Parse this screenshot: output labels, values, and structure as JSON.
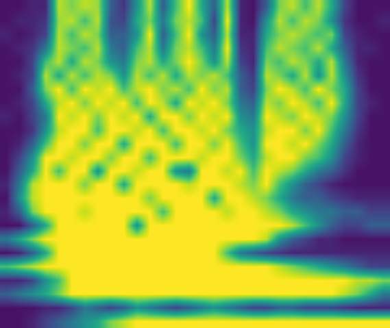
{
  "chart_data": {
    "type": "heatmap",
    "tick_labels": false,
    "zlim": [
      0,
      1
    ],
    "cells": [
      [
        0.05,
        0.05,
        0.1,
        0.1,
        0.9,
        0.8,
        0.9,
        0.85,
        0.3,
        0.15,
        0.5,
        0.9,
        0.3,
        0.7,
        1,
        0.6,
        0.3,
        0.9,
        0.1,
        0.05,
        0.3,
        0.8,
        0.9,
        0.7,
        0.9,
        0.6,
        0.2,
        0.05,
        0.05,
        0.05
      ],
      [
        0.05,
        0.1,
        0.1,
        0.15,
        0.85,
        0.9,
        0.7,
        0.9,
        0.25,
        0.2,
        0.6,
        0.8,
        0.4,
        0.8,
        0.9,
        0.7,
        0.2,
        1,
        0.1,
        0.05,
        0.5,
        0.9,
        0.7,
        0.9,
        0.8,
        0.5,
        0.15,
        0.05,
        0.05,
        0.1
      ],
      [
        0.1,
        0.05,
        0.1,
        0.2,
        0.9,
        0.7,
        0.9,
        0.8,
        0.3,
        0.3,
        0.5,
        1,
        0.3,
        0.7,
        1,
        0.5,
        0.3,
        0.9,
        0.1,
        0.1,
        0.6,
        0.8,
        0.9,
        0.8,
        0.7,
        0.8,
        0.2,
        0.1,
        0.05,
        0.05
      ],
      [
        0.05,
        0.1,
        0.15,
        0.4,
        0.9,
        0.8,
        0.7,
        0.9,
        0.4,
        0.3,
        0.7,
        0.9,
        0.4,
        0.8,
        0.9,
        0.7,
        0.4,
        1,
        0.15,
        0.1,
        0.7,
        0.9,
        0.8,
        0.7,
        0.9,
        0.6,
        0.3,
        0.1,
        0.1,
        0.05
      ],
      [
        0.05,
        0.05,
        0.2,
        0.7,
        0.9,
        0.6,
        0.9,
        0.8,
        0.5,
        0.4,
        0.8,
        0.9,
        0.6,
        0.8,
        1,
        0.8,
        0.5,
        0.9,
        0.2,
        0.1,
        0.8,
        0.7,
        0.9,
        0.8,
        0.6,
        0.9,
        0.4,
        0.1,
        0.05,
        0.05
      ],
      [
        0.05,
        0.1,
        0.2,
        0.9,
        0.6,
        0.9,
        0.7,
        0.9,
        0.8,
        0.5,
        0.9,
        0.7,
        0.9,
        0.6,
        0.9,
        0.8,
        0.9,
        0.7,
        0.3,
        0.15,
        0.9,
        0.8,
        0.6,
        0.9,
        0.5,
        0.9,
        0.5,
        0.15,
        0.05,
        0.05
      ],
      [
        0.05,
        0.05,
        0.3,
        0.8,
        1,
        0.7,
        1,
        0.9,
        1,
        0.7,
        0.9,
        1,
        0.8,
        0.9,
        0.7,
        1,
        0.8,
        0.9,
        0.3,
        0.2,
        0.8,
        1,
        0.9,
        0.7,
        1,
        0.8,
        0.6,
        0.2,
        0.05,
        0.05
      ],
      [
        0.05,
        0.1,
        0.2,
        0.6,
        0.9,
        1,
        0.8,
        1,
        0.9,
        1,
        0.7,
        1,
        0.9,
        0.6,
        1,
        0.9,
        1,
        0.8,
        0.4,
        0.3,
        0.9,
        0.8,
        1,
        0.9,
        0.7,
        1,
        0.6,
        0.2,
        0.1,
        0.05
      ],
      [
        0.1,
        0.05,
        0.2,
        0.4,
        1,
        0.9,
        1,
        0.8,
        1,
        0.9,
        1,
        0.6,
        1,
        1,
        0.8,
        1,
        0.9,
        1,
        0.5,
        0.4,
        1,
        0.9,
        0.8,
        1,
        0.9,
        0.8,
        0.5,
        0.2,
        0.05,
        0.05
      ],
      [
        0.05,
        0.05,
        0.15,
        0.5,
        0.9,
        1,
        1,
        0.7,
        1,
        1,
        0.9,
        1,
        0.7,
        1,
        1,
        0.9,
        1,
        0.8,
        0.6,
        0.5,
        0.9,
        1,
        1,
        0.8,
        1,
        0.7,
        0.4,
        0.15,
        0.05,
        0.05
      ],
      [
        0.05,
        0.1,
        0.3,
        0.7,
        1,
        1,
        0.8,
        1,
        1,
        0.6,
        1,
        1,
        1,
        0.7,
        1,
        1,
        0.8,
        1,
        0.7,
        0.5,
        1,
        1,
        0.9,
        1,
        0.8,
        0.6,
        0.3,
        0.1,
        0.05,
        0.05
      ],
      [
        0.05,
        0.2,
        0.5,
        1,
        1,
        0.9,
        1,
        1,
        0.8,
        1,
        1,
        0.7,
        1,
        1,
        1,
        0.9,
        1,
        1,
        0.8,
        0.6,
        0.9,
        1,
        1,
        0.8,
        0.7,
        0.5,
        0.2,
        0.1,
        0.05,
        0.05
      ],
      [
        0.05,
        0.3,
        0.6,
        1,
        0.7,
        1,
        1,
        0.5,
        1,
        1,
        0.9,
        1,
        1,
        0.5,
        0.4,
        1,
        1,
        0.9,
        1,
        0.7,
        1,
        0.9,
        0.8,
        0.6,
        0.4,
        0.3,
        0.15,
        0.05,
        0.05,
        0.05
      ],
      [
        0.1,
        0.4,
        0.9,
        1,
        1,
        1,
        0.8,
        1,
        1,
        0.6,
        1,
        1,
        1,
        1,
        0.9,
        1,
        1,
        1,
        0.9,
        0.8,
        1,
        0.7,
        0.5,
        0.3,
        0.2,
        0.1,
        0.05,
        0.05,
        0.05,
        0.05
      ],
      [
        0.05,
        0.5,
        0.9,
        1,
        1,
        1,
        1,
        1,
        1,
        1,
        1,
        0.8,
        1,
        1,
        1,
        1,
        0.6,
        1,
        1,
        0.9,
        0.8,
        0.6,
        0.4,
        0.3,
        0.3,
        0.2,
        0.15,
        0.1,
        0.1,
        0.1
      ],
      [
        0.1,
        0.3,
        0.8,
        1,
        1,
        1,
        0.9,
        1,
        1,
        1,
        1,
        1,
        0.7,
        1,
        1,
        1,
        1,
        0.9,
        1,
        1,
        0.9,
        0.8,
        0.6,
        0.5,
        0.4,
        0.4,
        0.3,
        0.3,
        0.2,
        0.2
      ],
      [
        0.05,
        0.05,
        0.3,
        0.6,
        1,
        1,
        1,
        1,
        1,
        1,
        0.5,
        1,
        1,
        1,
        1,
        1,
        1,
        1,
        1,
        1,
        1,
        1,
        0.9,
        0.7,
        0.5,
        0.3,
        0.2,
        0.2,
        0.3,
        0.3
      ],
      [
        0.4,
        0.6,
        0.8,
        1,
        1,
        1,
        1,
        1,
        1,
        1,
        1,
        1,
        1,
        1,
        1,
        1,
        1,
        1,
        1,
        1,
        0.9,
        0.5,
        0.3,
        0.2,
        0.1,
        0.1,
        0.05,
        0.05,
        0.05,
        0.05
      ],
      [
        0.05,
        0.1,
        0.3,
        0.6,
        1,
        1,
        1,
        1,
        1,
        1,
        1,
        1,
        1,
        1,
        1,
        1,
        1,
        0.7,
        0.4,
        0.3,
        0.2,
        0.15,
        0.1,
        0.1,
        0.1,
        0.1,
        0.1,
        0.1,
        0.1,
        0.1
      ],
      [
        0.7,
        0.8,
        0.9,
        1,
        1,
        1,
        1,
        1,
        1,
        1,
        1,
        1,
        1,
        1,
        1,
        1,
        1,
        1,
        1,
        1,
        1,
        0.9,
        0.8,
        0.7,
        0.6,
        0.5,
        0.4,
        0.3,
        0.2,
        0.2
      ],
      [
        0.1,
        0.1,
        0.2,
        0.5,
        0.7,
        1,
        1,
        1,
        1,
        1,
        1,
        1,
        1,
        1,
        1,
        1,
        1,
        1,
        1,
        1,
        1,
        1,
        1,
        1,
        1,
        1,
        1,
        0.9,
        0.9,
        0.8
      ],
      [
        0.3,
        0.4,
        0.5,
        0.6,
        0.8,
        1,
        1,
        1,
        1,
        1,
        1,
        1,
        1,
        1,
        1,
        1,
        1,
        1,
        1,
        1,
        1,
        1,
        1,
        1,
        1,
        1,
        0.9,
        0.8,
        0.6,
        0.4
      ],
      [
        0.05,
        0.05,
        0.05,
        0.1,
        0.1,
        0.2,
        0.4,
        0.3,
        0.2,
        0.3,
        0.5,
        0.4,
        0.3,
        0.2,
        0.3,
        0.4,
        0.5,
        0.4,
        0.3,
        0.2,
        0.2,
        0.3,
        0.3,
        0.2,
        0.2,
        0.2,
        0.15,
        0.1,
        0.1,
        0.1
      ],
      [
        0.05,
        0.05,
        0.1,
        0.2,
        0.3,
        0.4,
        0.5,
        0.6,
        0.8,
        0.9,
        1,
        1,
        1,
        1,
        1,
        1,
        1,
        1,
        1,
        1,
        1,
        1,
        1,
        1,
        1,
        1,
        1,
        1,
        1,
        1
      ]
    ]
  }
}
